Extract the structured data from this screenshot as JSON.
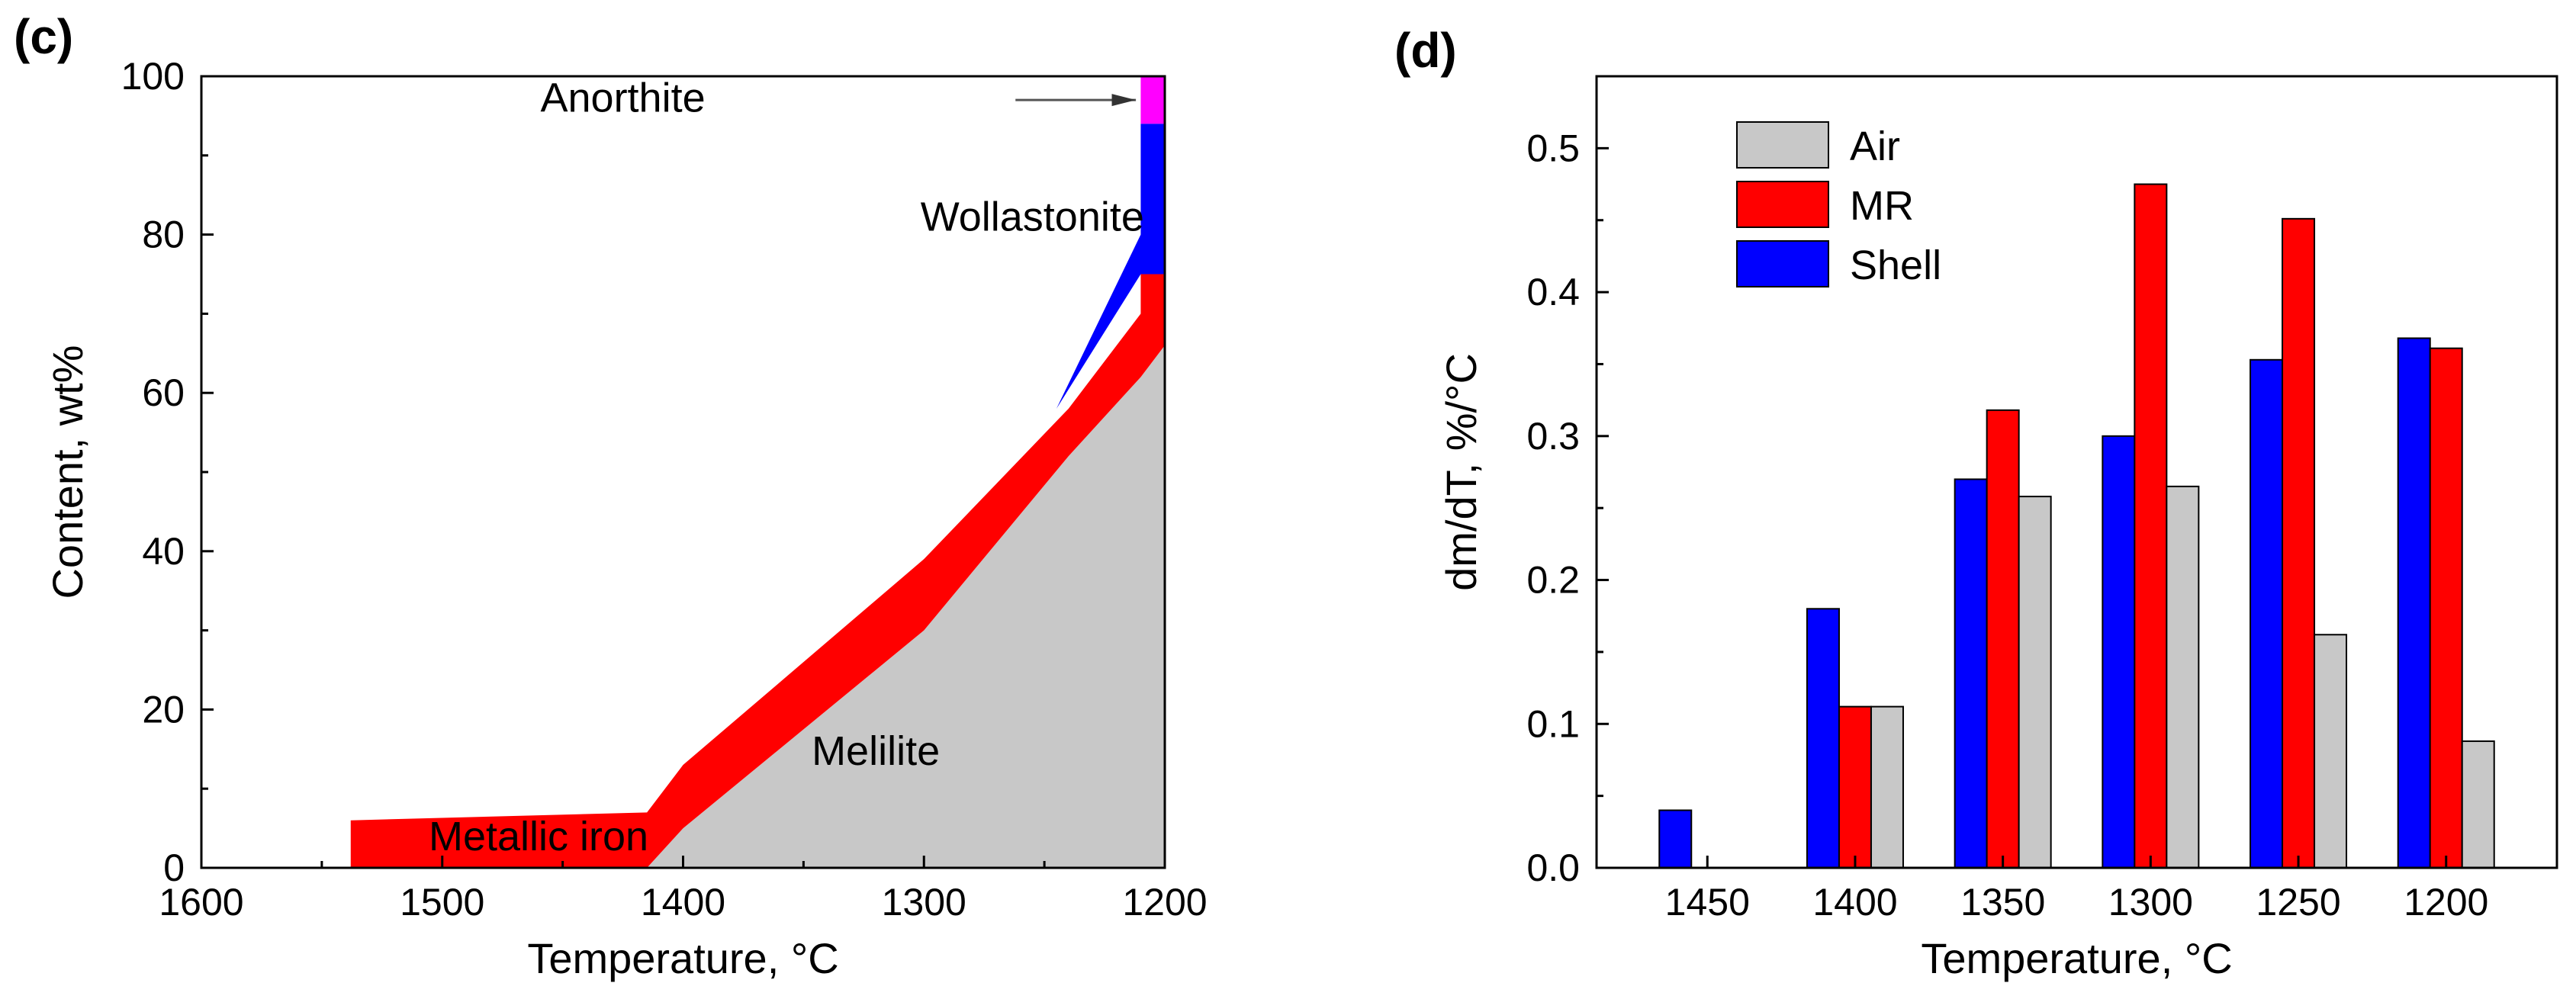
{
  "panels": [
    {
      "label": "(c)",
      "chart_data": {
        "type": "area",
        "xlabel": "Temperature, °C",
        "ylabel": "Content, wt%",
        "xlim": [
          1600,
          1200
        ],
        "ylim": [
          0,
          100
        ],
        "x_ticks": [
          1600,
          1500,
          1400,
          1300,
          1200
        ],
        "y_ticks": [
          0,
          20,
          40,
          60,
          80,
          100
        ],
        "regions": [
          {
            "name": "Melilite",
            "color": "#c8c8c8",
            "boundary": [
              [
                1415,
                0
              ],
              [
                1400,
                5
              ],
              [
                1300,
                30
              ],
              [
                1240,
                52
              ],
              [
                1210,
                62
              ],
              [
                1200,
                66
              ]
            ]
          },
          {
            "name": "Metallic iron",
            "color": "#ff0000",
            "upper": [
              [
                1538,
                6
              ],
              [
                1415,
                7
              ],
              [
                1400,
                13
              ],
              [
                1300,
                39
              ],
              [
                1240,
                58
              ],
              [
                1210,
                70
              ],
              [
                1210,
                75
              ],
              [
                1200,
                75
              ]
            ],
            "lower": [
              [
                1538,
                0
              ],
              [
                1415,
                0
              ],
              [
                1400,
                5
              ],
              [
                1300,
                30
              ],
              [
                1240,
                52
              ],
              [
                1210,
                62
              ],
              [
                1200,
                66
              ]
            ]
          },
          {
            "name": "Wollastonite",
            "color": "#0000ff",
            "upper": [
              [
                1245,
                58
              ],
              [
                1210,
                80
              ],
              [
                1210,
                94
              ],
              [
                1200,
                94
              ]
            ],
            "lower": [
              [
                1245,
                58
              ],
              [
                1210,
                75
              ],
              [
                1200,
                75
              ]
            ]
          },
          {
            "name": "Anorthite",
            "color": "#ff00ff",
            "upper": [
              [
                1210,
                100
              ],
              [
                1200,
                100
              ]
            ],
            "lower": [
              [
                1210,
                94
              ],
              [
                1200,
                94
              ]
            ]
          }
        ],
        "annotations": [
          {
            "text": "Anorthite",
            "x": 1425,
            "y": 95.5
          },
          {
            "text": "Wollastonite",
            "x": 1255,
            "y": 80.5
          },
          {
            "text": "Melilite",
            "x": 1320,
            "y": 13
          },
          {
            "text": "Metallic iron",
            "x": 1460,
            "y": 2.2
          }
        ]
      }
    },
    {
      "label": "(d)",
      "chart_data": {
        "type": "bar",
        "xlabel": "Temperature, °C",
        "ylabel": "dm/dT, %/°C",
        "ylim": [
          0,
          0.55
        ],
        "y_ticks": [
          0.0,
          0.1,
          0.2,
          0.3,
          0.4,
          0.5
        ],
        "categories": [
          "1450",
          "1400",
          "1350",
          "1300",
          "1250",
          "1200"
        ],
        "series": [
          {
            "name": "Shell",
            "color": "#0000ff",
            "values": [
              0.04,
              0.18,
              0.27,
              0.3,
              0.353,
              0.368
            ]
          },
          {
            "name": "MR",
            "color": "#ff0000",
            "values": [
              0,
              0.112,
              0.318,
              0.475,
              0.451,
              0.361
            ]
          },
          {
            "name": "Air",
            "color": "#c8c8c8",
            "values": [
              0,
              0.112,
              0.258,
              0.265,
              0.162,
              0.088
            ]
          }
        ],
        "legend": {
          "placement": "top-left",
          "order": [
            "Air",
            "MR",
            "Shell"
          ]
        }
      }
    }
  ]
}
